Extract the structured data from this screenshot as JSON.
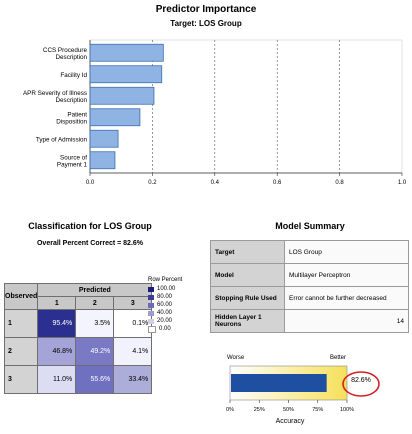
{
  "predictor_importance": {
    "title": "Predictor Importance",
    "subtitle": "Target: LOS Group",
    "chart_data": {
      "type": "bar",
      "orientation": "horizontal",
      "categories": [
        "CCS Procedure Description",
        "Facility Id",
        "APR Severity of Illness Description",
        "Patient Disposition",
        "Type of Admission",
        "Source of Payment 1"
      ],
      "values": [
        0.235,
        0.23,
        0.205,
        0.16,
        0.09,
        0.08
      ],
      "xlim": [
        0.0,
        1.0
      ],
      "xticks": [
        "0.0",
        "0.2",
        "0.4",
        "0.6",
        "0.8",
        "1.0"
      ],
      "grid": "vertical dashed",
      "bar_color": "#8fb4e3"
    }
  },
  "classification": {
    "title": "Classification for LOS Group",
    "subtitle": "Overall Percent Correct = 82.6%",
    "observed_label": "Observed",
    "predicted_label": "Predicted",
    "columns": [
      "1",
      "2",
      "3"
    ],
    "rows": [
      {
        "label": "1",
        "cells": [
          {
            "text": "95.4%",
            "color": "#2b2f8f",
            "fg": "#ffffff"
          },
          {
            "text": "3.5%",
            "color": "#f4f4ff",
            "fg": "#000000"
          },
          {
            "text": "0.1%",
            "color": "#ffffff",
            "fg": "#000000"
          }
        ]
      },
      {
        "label": "2",
        "cells": [
          {
            "text": "46.8%",
            "color": "#a4a4d8",
            "fg": "#000000"
          },
          {
            "text": "49.2%",
            "color": "#7a7ac4",
            "fg": "#ffffff"
          },
          {
            "text": "4.1%",
            "color": "#f2f2ff",
            "fg": "#000000"
          }
        ]
      },
      {
        "label": "3",
        "cells": [
          {
            "text": "11.0%",
            "color": "#dcdcf2",
            "fg": "#000000"
          },
          {
            "text": "55.6%",
            "color": "#7070c0",
            "fg": "#ffffff"
          },
          {
            "text": "33.4%",
            "color": "#adadda",
            "fg": "#000000"
          }
        ]
      }
    ],
    "legend": {
      "title": "Row Percent",
      "items": [
        {
          "label": "100.00",
          "color": "#1c1f7a"
        },
        {
          "label": "80.00",
          "color": "#3c3c9a"
        },
        {
          "label": "60.00",
          "color": "#6a6ab8"
        },
        {
          "label": "40.00",
          "color": "#9c9cd0"
        },
        {
          "label": "20.00",
          "color": "#cfcfec"
        },
        {
          "label": "0.00",
          "color": "#ffffff"
        }
      ]
    }
  },
  "model_summary": {
    "title": "Model Summary",
    "rows": [
      {
        "label": "Target",
        "value": "LOS Group"
      },
      {
        "label": "Model",
        "value": "Multilayer Perceptron"
      },
      {
        "label": "Stopping Rule Used",
        "value": "Error cannot be further decreased"
      },
      {
        "label": "Hidden Layer 1 Neurons",
        "value": "14"
      }
    ]
  },
  "accuracy": {
    "worse_label": "Worse",
    "better_label": "Better",
    "value_label": "82.6%",
    "axis_label": "Accuracy",
    "value": 0.826,
    "ticks": [
      "0%",
      "25%",
      "50%",
      "75%",
      "100%"
    ],
    "bar_color": "#1f4fa0",
    "highlight_color": "#d62020"
  }
}
